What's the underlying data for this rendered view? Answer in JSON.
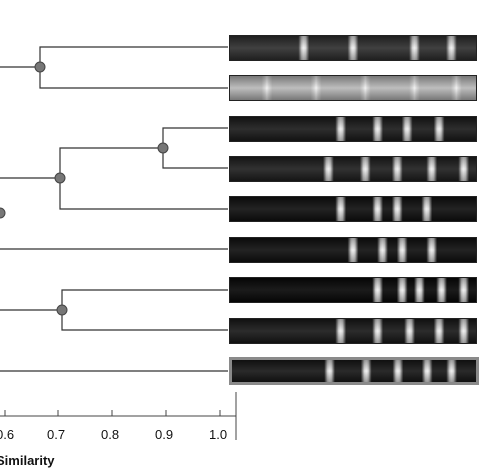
{
  "axis": {
    "title": "Similarity",
    "ticks": [
      "0.6",
      "0.7",
      "0.8",
      "0.9",
      "1.0"
    ]
  },
  "dendrogram": {
    "lanes": 9,
    "nodes": [
      {
        "similarity": 0.67,
        "joins": [
          0,
          1
        ]
      },
      {
        "similarity": 0.89,
        "joins": [
          2,
          3
        ]
      },
      {
        "similarity": 0.7,
        "joins": [
          "2-3",
          4
        ]
      },
      {
        "similarity": 0.71,
        "joins": [
          6,
          7
        ]
      }
    ]
  },
  "gel_lanes": [
    {
      "index": 1,
      "bg": "#303030",
      "bands": [
        0.3,
        0.5,
        0.75,
        0.9
      ]
    },
    {
      "index": 2,
      "bg": "#b8b8b8",
      "bands": [
        0.15,
        0.35,
        0.55,
        0.75,
        0.92
      ]
    },
    {
      "index": 3,
      "bg": "#1c1c1c",
      "bands": [
        0.45,
        0.6,
        0.72,
        0.85
      ]
    },
    {
      "index": 4,
      "bg": "#202020",
      "bands": [
        0.4,
        0.55,
        0.68,
        0.82,
        0.95
      ]
    },
    {
      "index": 5,
      "bg": "#101010",
      "bands": [
        0.45,
        0.6,
        0.68,
        0.8
      ]
    },
    {
      "index": 6,
      "bg": "#101010",
      "bands": [
        0.5,
        0.62,
        0.7,
        0.82
      ]
    },
    {
      "index": 7,
      "bg": "#080808",
      "bands": [
        0.6,
        0.7,
        0.77,
        0.86,
        0.95
      ]
    },
    {
      "index": 8,
      "bg": "#1a1a1a",
      "bands": [
        0.45,
        0.6,
        0.73,
        0.85,
        0.95
      ]
    },
    {
      "index": 9,
      "bg": "#181818",
      "bands": [
        0.4,
        0.55,
        0.68,
        0.8,
        0.9
      ],
      "selected": true
    }
  ]
}
